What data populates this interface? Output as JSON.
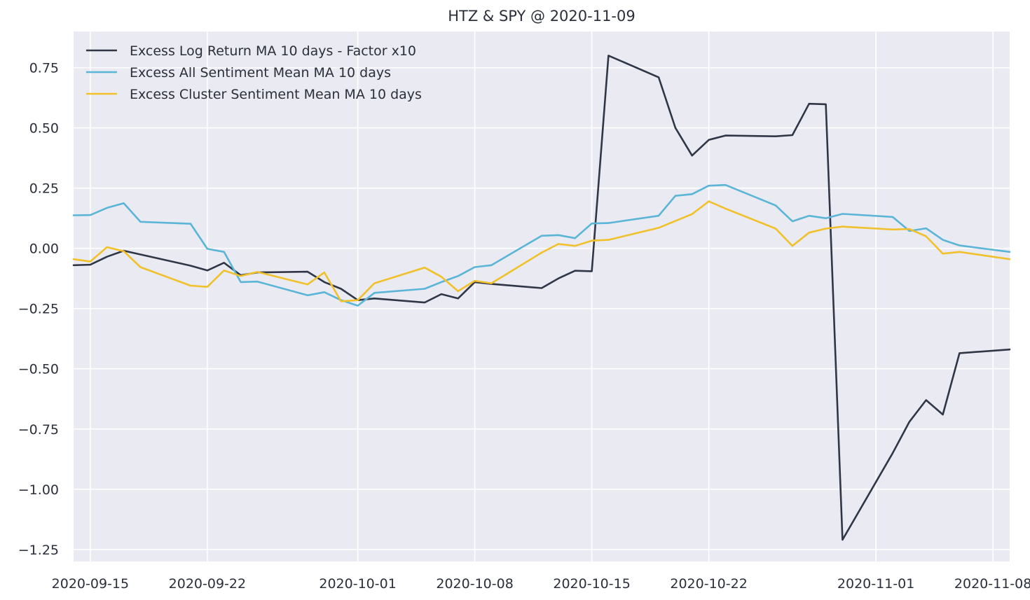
{
  "chart_data": {
    "type": "line",
    "title": "HTZ & SPY @ 2020-11-09",
    "xlabel": "",
    "ylabel": "",
    "ylim": [
      -1.3,
      0.9
    ],
    "xlim": [
      "2020-09-14",
      "2020-11-09"
    ],
    "grid": true,
    "legend_position": "top-left",
    "y_ticks": [
      0.75,
      0.5,
      0.25,
      0.0,
      -0.25,
      -0.5,
      -0.75,
      -1.0,
      -1.25
    ],
    "y_tick_labels": [
      "0.75",
      "0.50",
      "0.25",
      "0.00",
      "−0.25",
      "−0.50",
      "−0.75",
      "−1.00",
      "−1.25"
    ],
    "x_ticks": [
      "2020-09-15",
      "2020-09-22",
      "2020-10-01",
      "2020-10-08",
      "2020-10-15",
      "2020-10-22",
      "2020-11-01",
      "2020-11-08"
    ],
    "x_tick_labels": [
      "2020-09-15",
      "2020-09-22",
      "2020-10-01",
      "2020-10-08",
      "2020-10-15",
      "2020-10-22",
      "2020-11-01",
      "2020-11-08"
    ],
    "background_color": "#eaeaf2",
    "grid_color": "#ffffff",
    "series": [
      {
        "name": "Excess Log Return MA 10 days - Factor x10",
        "color": "#2f3747",
        "points": [
          [
            "2020-09-14",
            -0.07
          ],
          [
            "2020-09-15",
            -0.068
          ],
          [
            "2020-09-16",
            -0.035
          ],
          [
            "2020-09-17",
            -0.01
          ],
          [
            "2020-09-21",
            -0.072
          ],
          [
            "2020-09-22",
            -0.092
          ],
          [
            "2020-09-23",
            -0.06
          ],
          [
            "2020-09-24",
            -0.112
          ],
          [
            "2020-09-25",
            -0.1
          ],
          [
            "2020-09-28",
            -0.097
          ],
          [
            "2020-09-29",
            -0.14
          ],
          [
            "2020-09-30",
            -0.168
          ],
          [
            "2020-10-01",
            -0.215
          ],
          [
            "2020-10-02",
            -0.208
          ],
          [
            "2020-10-05",
            -0.225
          ],
          [
            "2020-10-06",
            -0.19
          ],
          [
            "2020-10-07",
            -0.208
          ],
          [
            "2020-10-08",
            -0.14
          ],
          [
            "2020-10-09",
            -0.148
          ],
          [
            "2020-10-12",
            -0.165
          ],
          [
            "2020-10-13",
            -0.125
          ],
          [
            "2020-10-14",
            -0.093
          ],
          [
            "2020-10-15",
            -0.095
          ],
          [
            "2020-10-16",
            0.8
          ],
          [
            "2020-10-19",
            0.71
          ],
          [
            "2020-10-20",
            0.5
          ],
          [
            "2020-10-21",
            0.385
          ],
          [
            "2020-10-22",
            0.45
          ],
          [
            "2020-10-23",
            0.468
          ],
          [
            "2020-10-26",
            0.465
          ],
          [
            "2020-10-27",
            0.47
          ],
          [
            "2020-10-28",
            0.6
          ],
          [
            "2020-10-29",
            0.598
          ],
          [
            "2020-10-30",
            -1.21
          ],
          [
            "2020-11-02",
            -0.85
          ],
          [
            "2020-11-03",
            -0.72
          ],
          [
            "2020-11-04",
            -0.63
          ],
          [
            "2020-11-05",
            -0.69
          ],
          [
            "2020-11-06",
            -0.435
          ],
          [
            "2020-11-09",
            -0.42
          ]
        ]
      },
      {
        "name": "Excess All Sentiment Mean MA 10 days",
        "color": "#5ab5d6",
        "points": [
          [
            "2020-09-14",
            0.137
          ],
          [
            "2020-09-15",
            0.138
          ],
          [
            "2020-09-16",
            0.168
          ],
          [
            "2020-09-17",
            0.187
          ],
          [
            "2020-09-18",
            0.11
          ],
          [
            "2020-09-21",
            0.102
          ],
          [
            "2020-09-22",
            -0.002
          ],
          [
            "2020-09-23",
            -0.015
          ],
          [
            "2020-09-24",
            -0.14
          ],
          [
            "2020-09-25",
            -0.138
          ],
          [
            "2020-09-28",
            -0.195
          ],
          [
            "2020-09-29",
            -0.182
          ],
          [
            "2020-09-30",
            -0.215
          ],
          [
            "2020-10-01",
            -0.238
          ],
          [
            "2020-10-02",
            -0.185
          ],
          [
            "2020-10-05",
            -0.168
          ],
          [
            "2020-10-06",
            -0.14
          ],
          [
            "2020-10-07",
            -0.115
          ],
          [
            "2020-10-08",
            -0.078
          ],
          [
            "2020-10-09",
            -0.07
          ],
          [
            "2020-10-12",
            0.052
          ],
          [
            "2020-10-13",
            0.055
          ],
          [
            "2020-10-14",
            0.042
          ],
          [
            "2020-10-15",
            0.103
          ],
          [
            "2020-10-16",
            0.105
          ],
          [
            "2020-10-19",
            0.135
          ],
          [
            "2020-10-20",
            0.218
          ],
          [
            "2020-10-21",
            0.225
          ],
          [
            "2020-10-22",
            0.26
          ],
          [
            "2020-10-23",
            0.263
          ],
          [
            "2020-10-26",
            0.178
          ],
          [
            "2020-10-27",
            0.112
          ],
          [
            "2020-10-28",
            0.135
          ],
          [
            "2020-10-29",
            0.125
          ],
          [
            "2020-10-30",
            0.143
          ],
          [
            "2020-11-02",
            0.13
          ],
          [
            "2020-11-03",
            0.072
          ],
          [
            "2020-11-04",
            0.083
          ],
          [
            "2020-11-05",
            0.035
          ],
          [
            "2020-11-06",
            0.012
          ],
          [
            "2020-11-09",
            -0.015
          ]
        ]
      },
      {
        "name": "Excess Cluster Sentiment Mean MA 10 days",
        "color": "#f0c12a",
        "points": [
          [
            "2020-09-14",
            -0.045
          ],
          [
            "2020-09-15",
            -0.055
          ],
          [
            "2020-09-16",
            0.005
          ],
          [
            "2020-09-17",
            -0.012
          ],
          [
            "2020-09-18",
            -0.078
          ],
          [
            "2020-09-21",
            -0.155
          ],
          [
            "2020-09-22",
            -0.16
          ],
          [
            "2020-09-23",
            -0.092
          ],
          [
            "2020-09-24",
            -0.115
          ],
          [
            "2020-09-25",
            -0.098
          ],
          [
            "2020-09-28",
            -0.15
          ],
          [
            "2020-09-29",
            -0.1
          ],
          [
            "2020-09-30",
            -0.22
          ],
          [
            "2020-10-01",
            -0.215
          ],
          [
            "2020-10-02",
            -0.145
          ],
          [
            "2020-10-05",
            -0.08
          ],
          [
            "2020-10-06",
            -0.118
          ],
          [
            "2020-10-07",
            -0.178
          ],
          [
            "2020-10-08",
            -0.135
          ],
          [
            "2020-10-09",
            -0.145
          ],
          [
            "2020-10-12",
            -0.018
          ],
          [
            "2020-10-13",
            0.018
          ],
          [
            "2020-10-14",
            0.01
          ],
          [
            "2020-10-15",
            0.032
          ],
          [
            "2020-10-16",
            0.035
          ],
          [
            "2020-10-19",
            0.085
          ],
          [
            "2020-10-21",
            0.142
          ],
          [
            "2020-10-22",
            0.195
          ],
          [
            "2020-10-23",
            0.165
          ],
          [
            "2020-10-26",
            0.082
          ],
          [
            "2020-10-27",
            0.01
          ],
          [
            "2020-10-28",
            0.065
          ],
          [
            "2020-10-29",
            0.082
          ],
          [
            "2020-10-30",
            0.09
          ],
          [
            "2020-11-02",
            0.078
          ],
          [
            "2020-11-03",
            0.08
          ],
          [
            "2020-11-04",
            0.05
          ],
          [
            "2020-11-05",
            -0.022
          ],
          [
            "2020-11-06",
            -0.015
          ],
          [
            "2020-11-09",
            -0.045
          ]
        ]
      }
    ]
  }
}
